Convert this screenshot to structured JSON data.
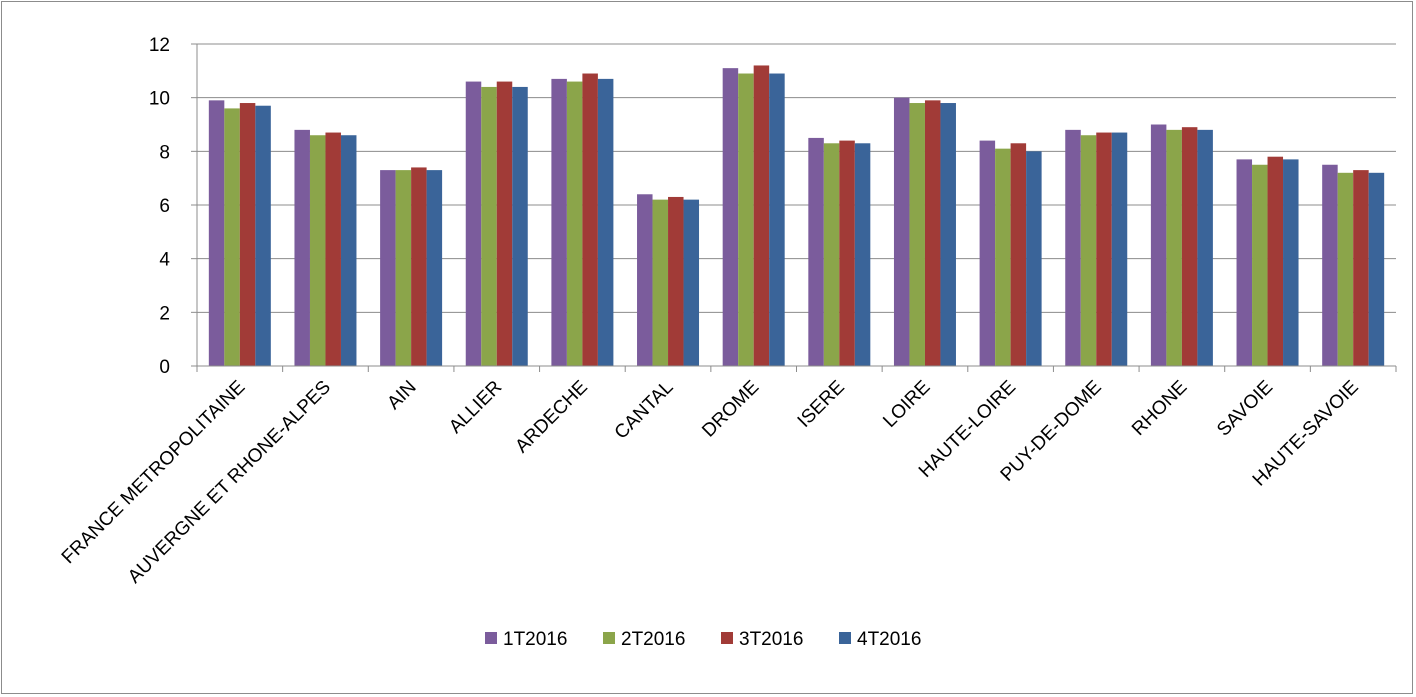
{
  "chart_data": {
    "type": "bar",
    "title": "",
    "xlabel": "",
    "ylabel": "",
    "ylim": [
      0,
      12
    ],
    "yticks": [
      0,
      2,
      4,
      6,
      8,
      10,
      12
    ],
    "grid": "horizontal",
    "legend_position": "bottom",
    "categories": [
      "FRANCE METROPOLITAINE",
      "AUVERGNE ET RHONE-ALPES",
      "AIN",
      "ALLIER",
      "ARDECHE",
      "CANTAL",
      "DROME",
      "ISERE",
      "LOIRE",
      "HAUTE-LOIRE",
      "PUY-DE-DOME",
      "RHONE",
      "SAVOIE",
      "HAUTE-SAVOIE"
    ],
    "series": [
      {
        "name": "1T2016",
        "color": "#7b5c9c",
        "values": [
          9.9,
          8.8,
          7.3,
          10.6,
          10.7,
          6.4,
          11.1,
          8.5,
          10.0,
          8.4,
          8.8,
          9.0,
          7.7,
          7.5
        ]
      },
      {
        "name": "2T2016",
        "color": "#8ba54a",
        "values": [
          9.6,
          8.6,
          7.3,
          10.4,
          10.6,
          6.2,
          10.9,
          8.3,
          9.8,
          8.1,
          8.6,
          8.8,
          7.5,
          7.2
        ]
      },
      {
        "name": "3T2016",
        "color": "#a13b37",
        "values": [
          9.8,
          8.7,
          7.4,
          10.6,
          10.9,
          6.3,
          11.2,
          8.4,
          9.9,
          8.3,
          8.7,
          8.9,
          7.8,
          7.3
        ]
      },
      {
        "name": "4T2016",
        "color": "#3a6499",
        "values": [
          9.7,
          8.6,
          7.3,
          10.4,
          10.7,
          6.2,
          10.9,
          8.3,
          9.8,
          8.0,
          8.7,
          8.8,
          7.7,
          7.2
        ]
      }
    ]
  }
}
